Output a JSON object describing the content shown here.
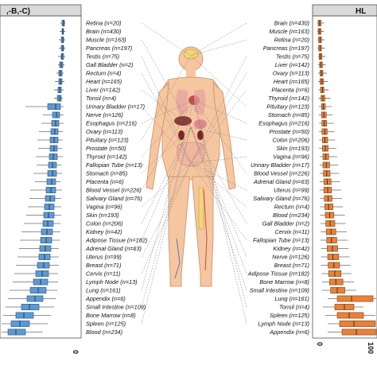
{
  "chart_data": [
    {
      "type": "box",
      "panel": "left",
      "title": ",-B,-C)",
      "colors": {
        "fill": "#5b9bd5",
        "stroke": "#2f4f6f",
        "median": "#1f2f4f"
      },
      "x_ticks": [
        "0"
      ],
      "tissues": [
        "Retina (n=20)",
        "Brain (n=430)",
        "Muscle (n=163)",
        "Pancreas (n=197)",
        "Testis (n=75)",
        "Gall Bladder (n=2)",
        "Rectum (n=4)",
        "Heart (n=165)",
        "Liver (n=142)",
        "Tonsil (n=4)",
        "Urinary Bladder (n=17)",
        "Nerve (n=126)",
        "Esophagus (n=216)",
        "Ovary (n=113)",
        "Pituitary (n=123)",
        "Prostate (n=50)",
        "Thyroid (n=142)",
        "Fallopian Tube (n=13)",
        "Stomach (n=85)",
        "Placenta (n=6)",
        "Blood Vessel (n=226)",
        "Salivary Gland (n=76)",
        "Vagina (n=96)",
        "Skin (n=193)",
        "Colon (n=206)",
        "Kidney (n=42)",
        "Adipose Tissue (n=182)",
        "Adrenal Gland (n=63)",
        "Uterus (n=99)",
        "Breast (n=71)",
        "Cervix (n=11)",
        "Lymph Node (n=13)",
        "Lung (n=161)",
        "Appendix (n=6)",
        "Small Intestine (n=109)",
        "Bone Marrow (n=8)",
        "Spleen (n=125)",
        "Blood (n=234)"
      ],
      "boxes": [
        {
          "q1": -4,
          "median": -2,
          "q3": -1,
          "whisker_low": -6,
          "whisker_high": 0
        },
        {
          "q1": -4,
          "median": -3,
          "q3": -2,
          "whisker_low": -7,
          "whisker_high": 0
        },
        {
          "q1": -5,
          "median": -3,
          "q3": -2,
          "whisker_low": -8,
          "whisker_high": 0
        },
        {
          "q1": -5,
          "median": -3,
          "q3": -2,
          "whisker_low": -8,
          "whisker_high": 0
        },
        {
          "q1": -5,
          "median": -4,
          "q3": -2,
          "whisker_low": -9,
          "whisker_high": 0
        },
        {
          "q1": -7,
          "median": -5,
          "q3": -3,
          "whisker_low": -9,
          "whisker_high": -1
        },
        {
          "q1": -8,
          "median": -6,
          "q3": -4,
          "whisker_low": -11,
          "whisker_high": -2
        },
        {
          "q1": -8,
          "median": -6,
          "q3": -4,
          "whisker_low": -13,
          "whisker_high": -1
        },
        {
          "q1": -9,
          "median": -7,
          "q3": -5,
          "whisker_low": -14,
          "whisker_high": -2
        },
        {
          "q1": -10,
          "median": -7,
          "q3": -5,
          "whisker_low": -14,
          "whisker_high": -3
        },
        {
          "q1": -22,
          "median": -12,
          "q3": -6,
          "whisker_low": -50,
          "whisker_high": -2
        },
        {
          "q1": -16,
          "median": -11,
          "q3": -7,
          "whisker_low": -28,
          "whisker_high": -2
        },
        {
          "q1": -17,
          "median": -12,
          "q3": -8,
          "whisker_low": -30,
          "whisker_high": -2
        },
        {
          "q1": -18,
          "median": -13,
          "q3": -9,
          "whisker_low": -33,
          "whisker_high": -3
        },
        {
          "q1": -19,
          "median": -14,
          "q3": -9,
          "whisker_low": -35,
          "whisker_high": -3
        },
        {
          "q1": -19,
          "median": -14,
          "q3": -10,
          "whisker_low": -34,
          "whisker_high": -4
        },
        {
          "q1": -20,
          "median": -15,
          "q3": -10,
          "whisker_low": -37,
          "whisker_high": -3
        },
        {
          "q1": -21,
          "median": -16,
          "q3": -11,
          "whisker_low": -36,
          "whisker_high": -5
        },
        {
          "q1": -22,
          "median": -16,
          "q3": -11,
          "whisker_low": -40,
          "whisker_high": -4
        },
        {
          "q1": -23,
          "median": -17,
          "q3": -12,
          "whisker_low": -38,
          "whisker_high": -6
        },
        {
          "q1": -24,
          "median": -18,
          "q3": -12,
          "whisker_low": -44,
          "whisker_high": -4
        },
        {
          "q1": -25,
          "median": -19,
          "q3": -13,
          "whisker_low": -45,
          "whisker_high": -5
        },
        {
          "q1": -26,
          "median": -20,
          "q3": -14,
          "whisker_low": -47,
          "whisker_high": -5
        },
        {
          "q1": -27,
          "median": -21,
          "q3": -14,
          "whisker_low": -49,
          "whisker_high": -5
        },
        {
          "q1": -28,
          "median": -22,
          "q3": -15,
          "whisker_low": -52,
          "whisker_high": -6
        },
        {
          "q1": -30,
          "median": -23,
          "q3": -16,
          "whisker_low": -55,
          "whisker_high": -6
        },
        {
          "q1": -31,
          "median": -24,
          "q3": -17,
          "whisker_low": -57,
          "whisker_high": -7
        },
        {
          "q1": -32,
          "median": -25,
          "q3": -18,
          "whisker_low": -58,
          "whisker_high": -8
        },
        {
          "q1": -33,
          "median": -26,
          "q3": -19,
          "whisker_low": -60,
          "whisker_high": -8
        },
        {
          "q1": -35,
          "median": -27,
          "q3": -20,
          "whisker_low": -62,
          "whisker_high": -8
        },
        {
          "q1": -37,
          "median": -29,
          "q3": -21,
          "whisker_low": -64,
          "whisker_high": -9
        },
        {
          "q1": -40,
          "median": -31,
          "q3": -22,
          "whisker_low": -66,
          "whisker_high": -9
        },
        {
          "q1": -44,
          "median": -34,
          "q3": -24,
          "whisker_low": -70,
          "whisker_high": -10
        },
        {
          "q1": -48,
          "median": -38,
          "q3": -28,
          "whisker_low": -72,
          "whisker_high": -12
        },
        {
          "q1": -55,
          "median": -45,
          "q3": -33,
          "whisker_low": -75,
          "whisker_high": -14
        },
        {
          "q1": -62,
          "median": -52,
          "q3": -40,
          "whisker_low": -78,
          "whisker_high": -18
        },
        {
          "q1": -68,
          "median": -57,
          "q3": -45,
          "whisker_low": -80,
          "whisker_high": -22
        },
        {
          "q1": -72,
          "median": -62,
          "q3": -50,
          "whisker_low": -80,
          "whisker_high": -28
        }
      ]
    },
    {
      "type": "box",
      "panel": "right",
      "title": "HL",
      "colors": {
        "fill": "#e8813a",
        "stroke": "#7a4014",
        "median": "#4a2608"
      },
      "x_ticks": [
        "0",
        "100"
      ],
      "tissues": [
        "Brain (n=430)",
        "Muscle (n=163)",
        "Retina (n=20)",
        "Pancreas (n=197)",
        "Testis (n=75)",
        "Liver (n=142)",
        "Ovary (n=113)",
        "Heart (n=165)",
        "Placenta (n=6)",
        "Thyroid (n=142)",
        "Pituitary (n=123)",
        "Stomach (n=85)",
        "Esophagus (n=216)",
        "Prostate (n=50)",
        "Colon (n=206)",
        "Skin (n=193)",
        "Vagina (n=96)",
        "Urinary Bladder (n=17)",
        "Blood Vessel (n=226)",
        "Adrenal Gland (n=63)",
        "Uterus (n=99)",
        "Salivary Gland (n=76)",
        "Rectum (n=4)",
        "Blood (n=234)",
        "Gall Bladder (n=2)",
        "Cervix (n=11)",
        "Fallopian Tube (n=13)",
        "Kidney (n=42)",
        "Nerve (n=126)",
        "Breast (n=71)",
        "Adipose Tissue (n=182)",
        "Bone Marrow (n=8)",
        "Small Intestine (n=109)",
        "Lung (n=161)",
        "Tonsil (n=4)",
        "Spleen (n=125)",
        "Lymph Node (n=13)",
        "Appendix (n=6)"
      ],
      "boxes": [
        {
          "q1": 0,
          "median": 3,
          "q3": 6,
          "whisker_low": -2,
          "whisker_high": 12
        },
        {
          "q1": 0,
          "median": 3,
          "q3": 6,
          "whisker_low": -2,
          "whisker_high": 12
        },
        {
          "q1": 1,
          "median": 4,
          "q3": 7,
          "whisker_low": -1,
          "whisker_high": 13
        },
        {
          "q1": 1,
          "median": 4,
          "q3": 7,
          "whisker_low": -1,
          "whisker_high": 14
        },
        {
          "q1": 2,
          "median": 5,
          "q3": 8,
          "whisker_low": 0,
          "whisker_high": 15
        },
        {
          "q1": 3,
          "median": 6,
          "q3": 9,
          "whisker_low": 0,
          "whisker_high": 16
        },
        {
          "q1": 4,
          "median": 7,
          "q3": 10,
          "whisker_low": 0,
          "whisker_high": 18
        },
        {
          "q1": 4,
          "median": 8,
          "q3": 11,
          "whisker_low": 0,
          "whisker_high": 20
        },
        {
          "q1": 5,
          "median": 9,
          "q3": 12,
          "whisker_low": 1,
          "whisker_high": 22
        },
        {
          "q1": 6,
          "median": 10,
          "q3": 14,
          "whisker_low": 1,
          "whisker_high": 26
        },
        {
          "q1": 7,
          "median": 11,
          "q3": 15,
          "whisker_low": 1,
          "whisker_high": 28
        },
        {
          "q1": 7,
          "median": 12,
          "q3": 17,
          "whisker_low": 1,
          "whisker_high": 30
        },
        {
          "q1": 8,
          "median": 13,
          "q3": 18,
          "whisker_low": 2,
          "whisker_high": 33
        },
        {
          "q1": 8,
          "median": 14,
          "q3": 19,
          "whisker_low": 2,
          "whisker_high": 34
        },
        {
          "q1": 9,
          "median": 14,
          "q3": 20,
          "whisker_low": 2,
          "whisker_high": 36
        },
        {
          "q1": 9,
          "median": 15,
          "q3": 21,
          "whisker_low": 2,
          "whisker_high": 38
        },
        {
          "q1": 10,
          "median": 16,
          "q3": 22,
          "whisker_low": 3,
          "whisker_high": 40
        },
        {
          "q1": 10,
          "median": 17,
          "q3": 24,
          "whisker_low": 3,
          "whisker_high": 42
        },
        {
          "q1": 11,
          "median": 18,
          "q3": 25,
          "whisker_low": 3,
          "whisker_high": 44
        },
        {
          "q1": 12,
          "median": 19,
          "q3": 27,
          "whisker_low": 3,
          "whisker_high": 46
        },
        {
          "q1": 12,
          "median": 20,
          "q3": 28,
          "whisker_low": 3,
          "whisker_high": 48
        },
        {
          "q1": 13,
          "median": 21,
          "q3": 29,
          "whisker_low": 4,
          "whisker_high": 50
        },
        {
          "q1": 14,
          "median": 22,
          "q3": 31,
          "whisker_low": 4,
          "whisker_high": 52
        },
        {
          "q1": 15,
          "median": 24,
          "q3": 33,
          "whisker_low": 4,
          "whisker_high": 56
        },
        {
          "q1": 16,
          "median": 25,
          "q3": 35,
          "whisker_low": 5,
          "whisker_high": 58
        },
        {
          "q1": 17,
          "median": 27,
          "q3": 37,
          "whisker_low": 5,
          "whisker_high": 60
        },
        {
          "q1": 18,
          "median": 28,
          "q3": 39,
          "whisker_low": 5,
          "whisker_high": 62
        },
        {
          "q1": 19,
          "median": 30,
          "q3": 41,
          "whisker_low": 6,
          "whisker_high": 64
        },
        {
          "q1": 20,
          "median": 31,
          "q3": 43,
          "whisker_low": 6,
          "whisker_high": 66
        },
        {
          "q1": 21,
          "median": 33,
          "q3": 45,
          "whisker_low": 6,
          "whisker_high": 68
        },
        {
          "q1": 22,
          "median": 35,
          "q3": 48,
          "whisker_low": 7,
          "whisker_high": 70
        },
        {
          "q1": 24,
          "median": 37,
          "q3": 52,
          "whisker_low": 8,
          "whisker_high": 75
        },
        {
          "q1": 26,
          "median": 40,
          "q3": 56,
          "whisker_low": 8,
          "whisker_high": 80
        },
        {
          "q1": 40,
          "median": 70,
          "q3": 115,
          "whisker_low": 20,
          "whisker_high": 140
        },
        {
          "q1": 35,
          "median": 55,
          "q3": 75,
          "whisker_low": 10,
          "whisker_high": 95
        },
        {
          "q1": 40,
          "median": 65,
          "q3": 95,
          "whisker_low": 15,
          "whisker_high": 120
        },
        {
          "q1": 45,
          "median": 75,
          "q3": 120,
          "whisker_low": 20,
          "whisker_high": 140
        },
        {
          "q1": 50,
          "median": 80,
          "q3": 125,
          "whisker_low": 20,
          "whisker_high": 140
        }
      ]
    }
  ]
}
